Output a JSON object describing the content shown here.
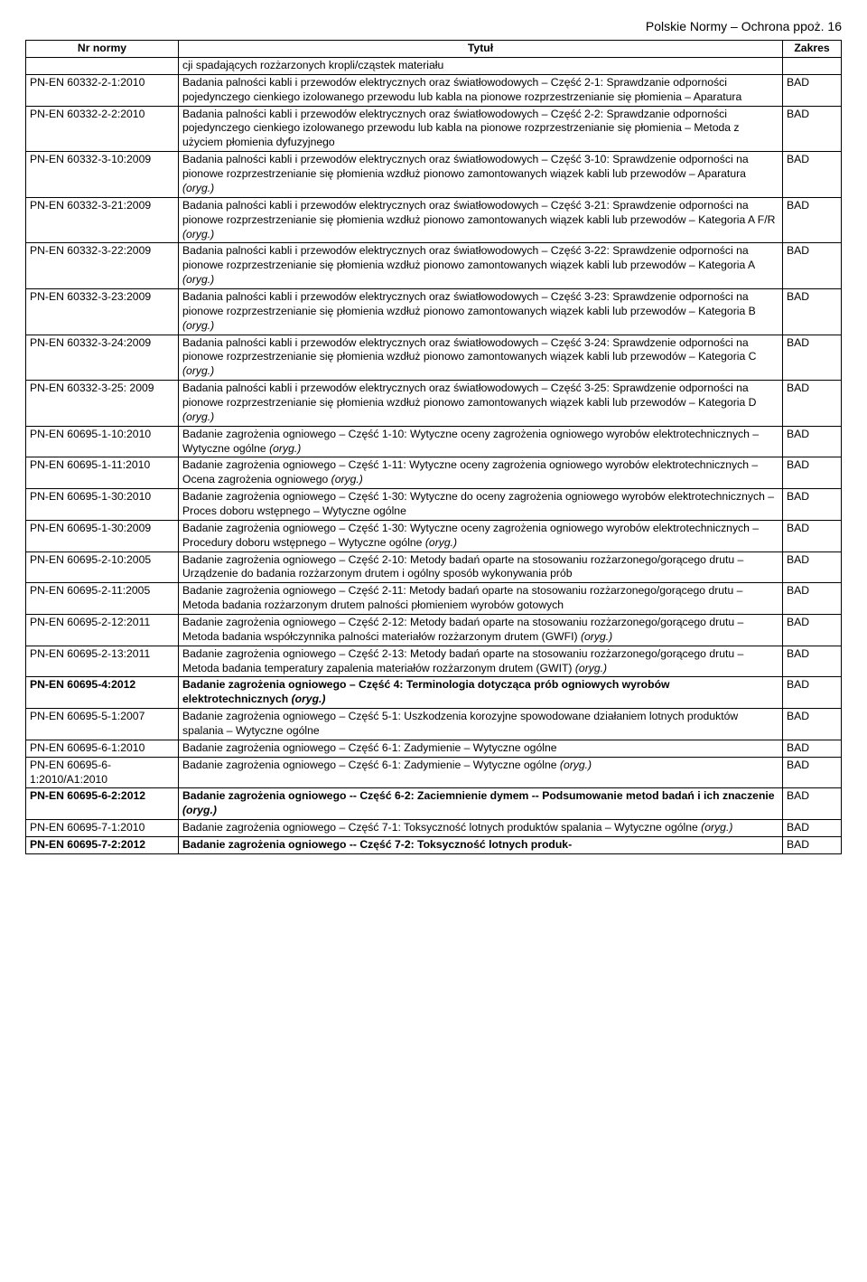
{
  "page_header": "Polskie Normy – Ochrona ppoż. 16",
  "table": {
    "columns": [
      "Nr normy",
      "Tytuł",
      "Zakres"
    ],
    "rows": [
      {
        "code": "",
        "title_parts": [
          {
            "t": "cji spadających rozżarzonych kropli/cząstek materiału"
          }
        ],
        "zakres": ""
      },
      {
        "code": "PN-EN 60332-2-1:2010",
        "title_parts": [
          {
            "t": "Badania palności kabli i przewodów elektrycznych oraz światłowodowych – Część 2-1: Sprawdzanie odporności pojedynczego cienkiego izolowanego przewodu lub kabla na pionowe rozprzestrzenianie się płomienia – Aparatura"
          }
        ],
        "zakres": "BAD"
      },
      {
        "code": "PN-EN 60332-2-2:2010",
        "title_parts": [
          {
            "t": "Badania palności kabli i przewodów elektrycznych oraz światłowodowych – Część 2-2: Sprawdzanie odporności pojedynczego cienkiego izolowanego przewodu lub kabla na pionowe rozprzestrzenianie się płomienia – Metoda z użyciem płomienia dyfuzyjnego"
          }
        ],
        "zakres": "BAD"
      },
      {
        "code": "PN-EN 60332-3-10:2009",
        "title_parts": [
          {
            "t": "Badania palności kabli i przewodów elektrycznych oraz światłowodowych – Część 3-10: Sprawdzenie odporności na pionowe rozprzestrzenianie się płomienia wzdłuż pionowo zamontowanych wiązek kabli lub przewodów – Aparatura "
          },
          {
            "t": "(oryg.)",
            "i": true
          }
        ],
        "zakres": "BAD"
      },
      {
        "code": "PN-EN 60332-3-21:2009",
        "title_parts": [
          {
            "t": "Badania palności kabli i przewodów elektrycznych oraz światłowodowych – Część 3-21: Sprawdzenie odporności na pionowe rozprzestrzenianie się płomienia wzdłuż pionowo zamontowanych wiązek kabli lub przewodów – Kategoria A F/R "
          },
          {
            "t": "(oryg.)",
            "i": true
          }
        ],
        "zakres": "BAD"
      },
      {
        "code": "PN-EN 60332-3-22:2009",
        "title_parts": [
          {
            "t": "Badania palności kabli i przewodów elektrycznych oraz światłowodowych – Część 3-22: Sprawdzenie odporności na pionowe rozprzestrzenianie się płomienia wzdłuż pionowo zamontowanych wiązek kabli lub przewodów – Kategoria A "
          },
          {
            "t": "(oryg.)",
            "i": true
          }
        ],
        "zakres": "BAD"
      },
      {
        "code": "PN-EN 60332-3-23:2009",
        "title_parts": [
          {
            "t": "Badania palności kabli i przewodów elektrycznych oraz światłowodowych – Część 3-23: Sprawdzenie odporności na pionowe rozprzestrzenianie się płomienia wzdłuż pionowo zamontowanych wiązek kabli lub przewodów – Kategoria B "
          },
          {
            "t": "(oryg.)",
            "i": true
          }
        ],
        "zakres": "BAD"
      },
      {
        "code": "PN-EN 60332-3-24:2009",
        "title_parts": [
          {
            "t": "Badania palności kabli i przewodów elektrycznych oraz światłowodowych – Część 3-24: Sprawdzenie odporności na pionowe rozprzestrzenianie się płomienia wzdłuż pionowo zamontowanych wiązek kabli lub przewodów – Kategoria C "
          },
          {
            "t": "(oryg.)",
            "i": true
          }
        ],
        "zakres": "BAD"
      },
      {
        "code": "PN-EN 60332-3-25: 2009",
        "title_parts": [
          {
            "t": "Badania palności kabli i przewodów elektrycznych oraz światłowodowych – Część 3-25: Sprawdzenie odporności na pionowe rozprzestrzenianie się płomienia wzdłuż pionowo zamontowanych wiązek kabli lub przewodów – Kategoria D "
          },
          {
            "t": "(oryg.)",
            "i": true
          }
        ],
        "zakres": "BAD"
      },
      {
        "code": "PN-EN 60695-1-10:2010",
        "title_parts": [
          {
            "t": "Badanie zagrożenia ogniowego – Część 1-10: Wytyczne oceny zagrożenia ogniowego wyrobów elektrotechnicznych – Wytyczne ogólne "
          },
          {
            "t": "(oryg.)",
            "i": true
          }
        ],
        "zakres": "BAD"
      },
      {
        "code": "PN-EN 60695-1-11:2010",
        "title_parts": [
          {
            "t": "Badanie zagrożenia ogniowego – Część 1-11: Wytyczne oceny zagrożenia ogniowego wyrobów elektrotechnicznych – Ocena zagrożenia ogniowego "
          },
          {
            "t": "(oryg.)",
            "i": true
          }
        ],
        "zakres": "BAD"
      },
      {
        "code": "PN-EN 60695-1-30:2010",
        "title_parts": [
          {
            "t": "Badanie zagrożenia ogniowego – Część 1-30: Wytyczne do oceny zagrożenia ogniowego wyrobów elektrotechnicznych – Proces doboru wstępnego – Wytyczne ogólne"
          }
        ],
        "zakres": "BAD"
      },
      {
        "code": "PN-EN 60695-1-30:2009",
        "title_parts": [
          {
            "t": "Badanie zagrożenia ogniowego – Część 1-30: Wytyczne oceny zagrożenia ogniowego wyrobów elektrotechnicznych – Procedury doboru wstępnego – Wytyczne ogólne "
          },
          {
            "t": "(oryg.)",
            "i": true
          }
        ],
        "zakres": "BAD"
      },
      {
        "code": "PN-EN 60695-2-10:2005",
        "title_parts": [
          {
            "t": "Badanie zagrożenia ogniowego – Część 2-10: Metody badań oparte na stosowaniu rozżarzonego/gorącego drutu – Urządzenie do badania rozżarzonym drutem i ogólny sposób wykonywania prób"
          }
        ],
        "zakres": "BAD"
      },
      {
        "code": "PN-EN 60695-2-11:2005",
        "title_parts": [
          {
            "t": "Badanie zagrożenia ogniowego – Część 2-11: Metody badań oparte na stosowaniu rozżarzonego/gorącego drutu – Metoda badania rozżarzonym drutem palności płomieniem wyrobów gotowych"
          }
        ],
        "zakres": "BAD"
      },
      {
        "code": "PN-EN 60695-2-12:2011",
        "title_parts": [
          {
            "t": "Badanie zagrożenia ogniowego – Część 2-12: Metody badań oparte na stosowaniu rozżarzonego/gorącego drutu – Metoda badania współczynnika palności materiałów rozżarzonym drutem (GWFI) "
          },
          {
            "t": "(oryg.)",
            "i": true
          }
        ],
        "zakres": "BAD"
      },
      {
        "code": "PN-EN 60695-2-13:2011",
        "title_parts": [
          {
            "t": "Badanie zagrożenia ogniowego – Część 2-13: Metody badań oparte na stosowaniu rozżarzonego/gorącego drutu – Metoda badania temperatury zapalenia materiałów rozżarzonym drutem (GWIT) "
          },
          {
            "t": "(oryg.)",
            "i": true
          }
        ],
        "zakres": "BAD"
      },
      {
        "code": "PN-EN 60695-4:2012",
        "bold": true,
        "title_parts": [
          {
            "t": "Badanie zagrożenia ogniowego – Część 4: Terminologia dotycząca prób ogniowych wyrobów elektrotechnicznych ",
            "b": true
          },
          {
            "t": "(oryg.)",
            "b": true,
            "i": true
          }
        ],
        "zakres": "BAD"
      },
      {
        "code": "PN-EN 60695-5-1:2007",
        "title_parts": [
          {
            "t": "Badanie zagrożenia ogniowego – Część 5-1: Uszkodzenia korozyjne spowodowane działaniem lotnych produktów spalania – Wytyczne ogólne"
          }
        ],
        "zakres": "BAD"
      },
      {
        "code": "PN-EN 60695-6-1:2010",
        "title_parts": [
          {
            "t": "Badanie zagrożenia ogniowego – Część 6-1: Zadymienie – Wytyczne ogólne"
          }
        ],
        "zakres": "BAD"
      },
      {
        "code": "PN-EN 60695-6-1:2010/A1:2010",
        "title_parts": [
          {
            "t": "Badanie zagrożenia ogniowego – Część 6-1: Zadymienie – Wytyczne ogólne "
          },
          {
            "t": "(oryg.)",
            "i": true
          }
        ],
        "zakres": "BAD"
      },
      {
        "code": "PN-EN 60695-6-2:2012",
        "bold": true,
        "title_parts": [
          {
            "t": "Badanie zagrożenia ogniowego -- Część 6-2: Zaciemnienie dymem -- Podsumowanie metod badań i ich znaczenie ",
            "b": true
          },
          {
            "t": "(oryg.)",
            "b": true,
            "i": true
          }
        ],
        "zakres": "BAD"
      },
      {
        "code": "PN-EN 60695-7-1:2010",
        "title_parts": [
          {
            "t": "Badanie zagrożenia ogniowego – Część 7-1: Toksyczność lotnych produktów spalania – Wytyczne ogólne "
          },
          {
            "t": "(oryg.)",
            "i": true
          }
        ],
        "zakres": "BAD"
      },
      {
        "code": "PN-EN 60695-7-2:2012",
        "bold": true,
        "title_parts": [
          {
            "t": "Badanie zagrożenia ogniowego -- Część 7-2: Toksyczność lotnych produk-",
            "b": true
          }
        ],
        "zakres": "BAD"
      }
    ]
  }
}
